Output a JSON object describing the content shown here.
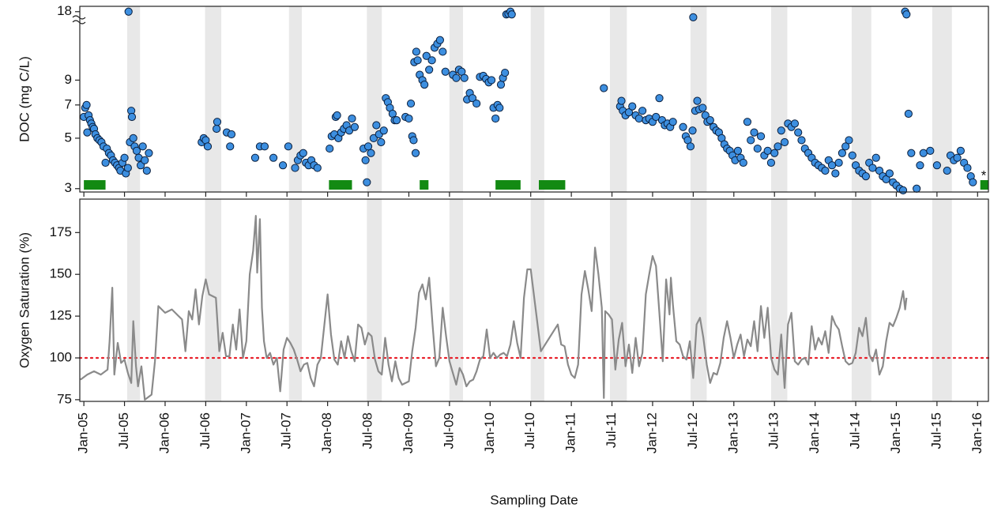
{
  "chart_data": [
    {
      "type": "scatter",
      "ylabel": "DOC (mg C/L)",
      "color": "#3d8fe0",
      "edge_color": "#0a1e3c",
      "log_scale": true,
      "ylim": [
        2.9,
        19
      ],
      "yticks": [
        3,
        5,
        7,
        9,
        18
      ],
      "xlim": [
        -0.6,
        133.6
      ],
      "xticks": [
        0,
        6,
        12,
        18,
        24,
        30,
        36,
        42,
        48,
        54,
        60,
        66,
        72,
        78,
        84,
        90,
        96,
        102,
        108,
        114,
        120,
        126,
        132
      ],
      "shaded_periods": [
        [
          6.4,
          8.3
        ],
        [
          17.9,
          20.3
        ],
        [
          30.3,
          32.2
        ],
        [
          41.8,
          44
        ],
        [
          54,
          56
        ],
        [
          66,
          68
        ],
        [
          77.7,
          80.2
        ],
        [
          89.6,
          92
        ],
        [
          101.5,
          103.9
        ],
        [
          113.4,
          116.3
        ],
        [
          125.3,
          128.2
        ]
      ],
      "shade_color": "#e8e8e8",
      "green_periods": [
        [
          0,
          3.2
        ],
        [
          36.2,
          39.6
        ],
        [
          49.6,
          50.9
        ],
        [
          60.8,
          64.5
        ],
        [
          67.2,
          71.1
        ],
        [
          132.4,
          133.6
        ]
      ],
      "green_color": "#138a13",
      "annotation": "*",
      "x": [
        0,
        0.2,
        0.4,
        0.5,
        0.7,
        0.9,
        1.1,
        1.3,
        1.5,
        1.7,
        2,
        2.3,
        2.6,
        2.9,
        3.2,
        3.4,
        3.7,
        4,
        4.3,
        4.6,
        4.9,
        5.2,
        5.4,
        5.7,
        6,
        6.2,
        6.5,
        6.6,
        6.8,
        7,
        7.1,
        7.3,
        7.5,
        7.8,
        8.1,
        8.4,
        8.7,
        9,
        9.3,
        9.6,
        17.4,
        17.7,
        18,
        18.3,
        19.6,
        19.7,
        21.1,
        21.6,
        21.8,
        25.3,
        26,
        26.7,
        28,
        29.4,
        30.2,
        31.2,
        31.6,
        32,
        32.4,
        32.8,
        33.2,
        33.6,
        34,
        34.5,
        36.3,
        36.6,
        37,
        37.2,
        37.4,
        37.6,
        38,
        38.4,
        38.8,
        39.2,
        39.6,
        40,
        41.3,
        41.6,
        41.8,
        42,
        42.4,
        42.8,
        43.2,
        43.6,
        43.9,
        44.3,
        44.6,
        44.9,
        45.2,
        45.6,
        45.9,
        46.2,
        47.5,
        48,
        48.3,
        48.5,
        48.7,
        49,
        48.8,
        49.1,
        49.3,
        49.6,
        50,
        50.3,
        50.6,
        51,
        51.4,
        51.8,
        52.2,
        52.6,
        53,
        53.4,
        54.5,
        55,
        55.4,
        55.8,
        56.2,
        56.6,
        57,
        57.4,
        58,
        58.5,
        59,
        59.4,
        59.8,
        60.2,
        60.5,
        60.8,
        61.1,
        61.4,
        61.6,
        61.9,
        62.2,
        62.4,
        62.7,
        63,
        63.2,
        76.8,
        79.2,
        79.4,
        79.6,
        80,
        80.5,
        81,
        81.5,
        82,
        82.5,
        83,
        83.5,
        84,
        84.5,
        85,
        85.4,
        85.8,
        86.2,
        86.6,
        87,
        88.5,
        88.9,
        89.2,
        89.6,
        89.9,
        90,
        90.3,
        90.6,
        90.9,
        91.4,
        91.8,
        92.1,
        92.5,
        93,
        93.4,
        93.8,
        94.2,
        94.6,
        95,
        95.4,
        95.8,
        96.2,
        96.6,
        97,
        97.4,
        98,
        98.5,
        99,
        99.5,
        100,
        100.5,
        101,
        101.5,
        102,
        102.5,
        103,
        103.5,
        104,
        104.5,
        105,
        105.5,
        106,
        106.5,
        107,
        107.5,
        108,
        108.5,
        109,
        109.5,
        110,
        110.5,
        111,
        111.5,
        112,
        112.5,
        113,
        113.5,
        114,
        114.5,
        115,
        115.5,
        116,
        116.5,
        117,
        117.5,
        118,
        118.5,
        119,
        119.5,
        120,
        120.5,
        121,
        121.3,
        121.5,
        121.8,
        122.2,
        123,
        123.5,
        124,
        125,
        126,
        127.5,
        128,
        128.5,
        129,
        129.5,
        130,
        130.5,
        131,
        131.3
      ],
      "values": [
        6.2,
        6.8,
        7,
        5.3,
        6.3,
        6,
        5.8,
        5.6,
        5.5,
        5.2,
        5,
        4.9,
        4.8,
        4.6,
        3.9,
        4.5,
        4.3,
        4.2,
        4,
        3.9,
        3.8,
        3.7,
        3.6,
        3.9,
        4.1,
        3.5,
        3.7,
        18,
        4.8,
        6.6,
        6.2,
        5,
        4.6,
        4.4,
        4.1,
        3.8,
        4.6,
        4,
        3.6,
        4.3,
        4.8,
        5,
        4.9,
        4.6,
        5.5,
        5.9,
        5.3,
        4.6,
        5.2,
        4.1,
        4.6,
        4.6,
        4.1,
        3.8,
        4.6,
        3.7,
        4,
        4.2,
        4.3,
        3.9,
        3.8,
        4,
        3.8,
        3.7,
        4.5,
        5.1,
        5.2,
        6.2,
        6.3,
        5,
        5.3,
        5.5,
        5.7,
        5.4,
        6.1,
        5.6,
        4.5,
        4,
        3.2,
        4.6,
        4.3,
        5,
        5.7,
        5.2,
        4.8,
        5.4,
        7.5,
        7.2,
        6.8,
        6.4,
        6,
        6,
        6.2,
        6.1,
        7.1,
        5.1,
        4.9,
        4.3,
        10.8,
        12,
        11,
        9.5,
        9,
        8.6,
        11.5,
        10,
        11,
        12.5,
        13,
        13.5,
        12,
        9.8,
        9.5,
        9.2,
        10,
        9.8,
        9.2,
        7.4,
        7.9,
        7.5,
        7.1,
        9.3,
        9.4,
        9.1,
        8.8,
        9,
        6.8,
        6.1,
        7,
        6.8,
        8.6,
        9.2,
        9.7,
        17.5,
        17.6,
        18,
        17.5,
        8.3,
        6.9,
        7.3,
        6.6,
        6.3,
        6.5,
        6.9,
        6.3,
        6.1,
        6.6,
        6,
        6.1,
        5.9,
        6.2,
        7.5,
        6,
        5.7,
        5.8,
        5.6,
        5.9,
        5.6,
        5.1,
        4.9,
        4.6,
        5.4,
        17,
        6.6,
        7.3,
        6.7,
        6.8,
        6.3,
        5.9,
        6,
        5.6,
        5.4,
        5.3,
        5,
        4.7,
        4.5,
        4.4,
        4.2,
        4,
        4.4,
        4.1,
        3.9,
        5.9,
        4.9,
        5.3,
        4.5,
        5.1,
        4.2,
        4.4,
        3.9,
        4.3,
        4.6,
        5.4,
        4.8,
        5.8,
        5.6,
        5.8,
        5.3,
        4.9,
        4.5,
        4.3,
        4.1,
        3.9,
        3.8,
        3.7,
        3.6,
        4,
        3.8,
        3.5,
        3.9,
        4.3,
        4.6,
        4.9,
        4.2,
        3.8,
        3.6,
        3.5,
        3.4,
        3.9,
        3.7,
        4.1,
        3.6,
        3.4,
        3.3,
        3.5,
        3.2,
        3.1,
        3,
        2.95,
        18,
        17.5,
        6.4,
        4.3,
        3,
        3.8,
        4.3,
        4.4,
        3.8,
        3.6,
        4.2,
        4,
        4.1,
        4.4,
        3.9,
        3.7,
        3.4,
        3.2
      ]
    },
    {
      "type": "line",
      "ylabel": "Oxygen Saturation (%)",
      "xlabel": "Sampling Date",
      "color": "#8a8a8a",
      "ylim": [
        74,
        195
      ],
      "yticks": [
        75,
        100,
        125,
        150,
        175
      ],
      "reference_line": {
        "value": 100,
        "color": "#e8202a"
      },
      "xlim": [
        -0.6,
        133.6
      ],
      "xticks": [
        {
          "value": 0,
          "label": "Jan-05"
        },
        {
          "value": 6,
          "label": "Jul-05"
        },
        {
          "value": 12,
          "label": "Jan-06"
        },
        {
          "value": 18,
          "label": "Jul-06"
        },
        {
          "value": 24,
          "label": "Jan-07"
        },
        {
          "value": 30,
          "label": "Jul-07"
        },
        {
          "value": 36,
          "label": "Jan-08"
        },
        {
          "value": 42,
          "label": "Jul-08"
        },
        {
          "value": 48,
          "label": "Jan-09"
        },
        {
          "value": 54,
          "label": "Jul-09"
        },
        {
          "value": 60,
          "label": "Jan-10"
        },
        {
          "value": 66,
          "label": "Jul-10"
        },
        {
          "value": 72,
          "label": "Jan-11"
        },
        {
          "value": 78,
          "label": "Jul-11"
        },
        {
          "value": 84,
          "label": "Jan-12"
        },
        {
          "value": 90,
          "label": "Jul-12"
        },
        {
          "value": 96,
          "label": "Jan-13"
        },
        {
          "value": 102,
          "label": "Jul-13"
        },
        {
          "value": 108,
          "label": "Jan-14"
        },
        {
          "value": 114,
          "label": "Jul-14"
        },
        {
          "value": 120,
          "label": "Jan-15"
        },
        {
          "value": 126,
          "label": "Jul-15"
        },
        {
          "value": 132,
          "label": "Jan-16"
        }
      ],
      "shaded_periods": [
        [
          6.4,
          8.3
        ],
        [
          17.9,
          20.3
        ],
        [
          30.3,
          32.2
        ],
        [
          41.8,
          44
        ],
        [
          54,
          56
        ],
        [
          66,
          68
        ],
        [
          77.7,
          80.2
        ],
        [
          89.6,
          92
        ],
        [
          101.5,
          103.9
        ],
        [
          113.4,
          116.3
        ],
        [
          125.3,
          128.2
        ]
      ],
      "shade_color": "#e8e8e8",
      "x": [
        -0.5,
        0.5,
        1.5,
        2.5,
        3.5,
        3.8,
        4.2,
        4.5,
        5,
        5.5,
        6,
        6.5,
        7,
        7.3,
        7.7,
        8,
        8.5,
        9,
        10,
        10.5,
        11,
        12,
        13,
        14,
        14.5,
        15,
        15.5,
        16,
        16.5,
        17,
        17.5,
        18,
        18.5,
        19,
        19.5,
        20,
        20.5,
        21,
        21.5,
        22,
        22.5,
        23,
        23.5,
        24,
        24.5,
        25,
        25.4,
        25.6,
        26,
        26.3,
        26.6,
        27,
        27.5,
        28,
        28.5,
        29,
        29.5,
        30,
        30.5,
        31,
        31.5,
        32,
        32.5,
        33,
        33.5,
        34,
        34.5,
        35,
        35.5,
        36,
        36.5,
        37,
        37.5,
        38,
        38.5,
        39,
        39.5,
        40,
        40.5,
        41,
        41.5,
        42,
        42.5,
        43,
        43.5,
        44,
        44.5,
        45,
        45.5,
        46,
        46.5,
        47,
        48,
        48.5,
        49,
        49.5,
        50,
        50.5,
        51,
        51.5,
        52,
        52.5,
        53,
        53.5,
        54,
        54.5,
        55,
        55.5,
        56,
        56.5,
        57,
        57.5,
        58,
        58.5,
        59,
        59.5,
        60,
        60.5,
        61,
        61.5,
        62,
        62.5,
        63,
        63.5,
        64,
        64.5,
        65,
        65.5,
        66,
        67.5,
        70,
        70.5,
        71,
        71.5,
        72,
        72.5,
        73,
        73.5,
        74,
        74.5,
        75,
        75.5,
        76,
        76.5,
        76.8,
        77,
        77.5,
        78,
        78.5,
        79,
        79.5,
        80,
        80.5,
        81,
        81.5,
        82,
        82.5,
        83,
        83.5,
        84,
        84.5,
        85,
        85.5,
        86,
        86.5,
        86.7,
        87,
        87.5,
        88,
        88.5,
        89,
        89.5,
        90,
        90.5,
        91,
        91.5,
        92,
        92.5,
        93,
        93.5,
        94,
        94.5,
        95,
        95.5,
        96,
        96.5,
        97,
        97.5,
        98,
        98.5,
        99,
        99.5,
        100,
        100.5,
        101,
        101.5,
        102,
        102.5,
        103,
        103.5,
        104,
        104.5,
        105,
        105.5,
        106,
        106.5,
        107,
        107.5,
        108,
        108.5,
        109,
        109.5,
        110,
        110.5,
        111,
        111.5,
        112,
        112.5,
        113,
        113.5,
        114,
        114.5,
        115,
        115.5,
        116,
        116.5,
        117,
        117.5,
        118,
        118.5,
        119,
        119.5,
        120,
        120.5,
        121,
        121.3,
        121.5
      ],
      "values": [
        87,
        90,
        92,
        90,
        93,
        110,
        142,
        90,
        109,
        97,
        99,
        91,
        85,
        122,
        95,
        83,
        95,
        75,
        78,
        98,
        131,
        127,
        129,
        125,
        123,
        104,
        128,
        123,
        141,
        120,
        137,
        147,
        138,
        137,
        136,
        104,
        115,
        101,
        101,
        120,
        105,
        129,
        100,
        110,
        150,
        164,
        185,
        151,
        183,
        130,
        110,
        100,
        103,
        96,
        100,
        80,
        105,
        112,
        109,
        105,
        99,
        92,
        96,
        97,
        88,
        83,
        96,
        100,
        119,
        138,
        114,
        99,
        96,
        110,
        100,
        113,
        104,
        98,
        120,
        118,
        108,
        115,
        113,
        99,
        92,
        90,
        112,
        96,
        86,
        98,
        88,
        84,
        86,
        104,
        118,
        139,
        144,
        135,
        148,
        120,
        95,
        100,
        130,
        113,
        98,
        91,
        84,
        94,
        90,
        83,
        86,
        87,
        92,
        99,
        101,
        117,
        100,
        103,
        100,
        102,
        103,
        101,
        108,
        122,
        109,
        100,
        136,
        153,
        153,
        104,
        120,
        108,
        107,
        96,
        90,
        88,
        96,
        138,
        152,
        141,
        128,
        166,
        150,
        130,
        76,
        128,
        126,
        123,
        93,
        111,
        121,
        95,
        108,
        91,
        112,
        95,
        103,
        138,
        150,
        161,
        155,
        127,
        98,
        147,
        126,
        148,
        132,
        110,
        108,
        101,
        99,
        110,
        88,
        120,
        124,
        112,
        96,
        85,
        91,
        90,
        97,
        112,
        122,
        112,
        100,
        108,
        114,
        101,
        111,
        107,
        122,
        104,
        131,
        112,
        130,
        100,
        93,
        90,
        114,
        82,
        120,
        127,
        98,
        96,
        99,
        100,
        96,
        119,
        105,
        112,
        108,
        116,
        103,
        125,
        120,
        117,
        107,
        98,
        96,
        97,
        103,
        118,
        113,
        124,
        102,
        98,
        105,
        90,
        95,
        110,
        121,
        119,
        124,
        130,
        140,
        129,
        136
      ]
    }
  ]
}
